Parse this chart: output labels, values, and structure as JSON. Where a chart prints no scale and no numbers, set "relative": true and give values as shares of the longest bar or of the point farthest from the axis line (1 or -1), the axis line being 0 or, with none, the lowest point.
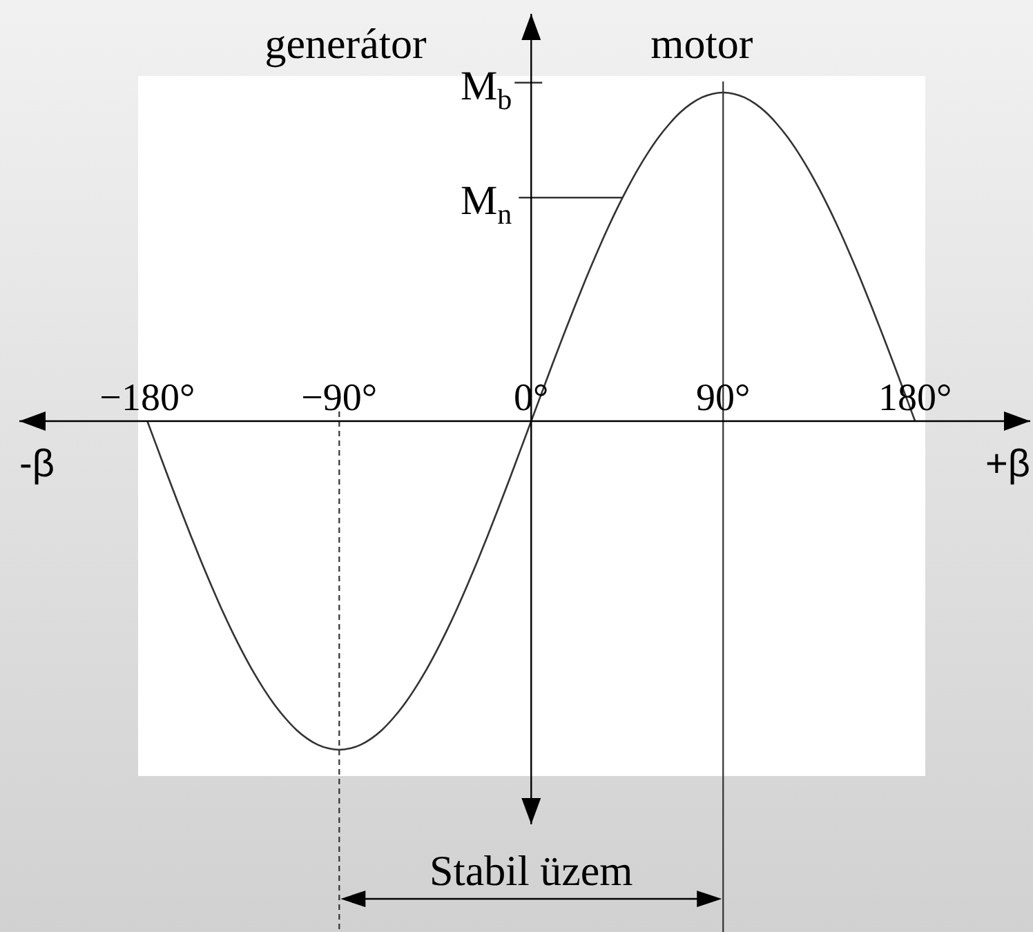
{
  "chart_data": {
    "type": "line",
    "relative": true,
    "xlabel": "+β",
    "annotations": [
      "generátor",
      "motor",
      "-β",
      "Stabil üzem"
    ],
    "xlim": [
      -240,
      234
    ],
    "xticks": [
      {
        "value": -180,
        "label": "−180°"
      },
      {
        "value": -90,
        "label": "−90°"
      },
      {
        "value": 0,
        "label": "0°"
      },
      {
        "value": 90,
        "label": "90°"
      },
      {
        "value": 180,
        "label": "180°"
      }
    ],
    "x": [
      -180,
      -175,
      -170,
      -165,
      -160,
      -155,
      -150,
      -145,
      -140,
      -135,
      -130,
      -125,
      -120,
      -115,
      -110,
      -105,
      -100,
      -95,
      -90,
      -85,
      -80,
      -75,
      -70,
      -65,
      -60,
      -55,
      -50,
      -45,
      -40,
      -35,
      -30,
      -25,
      -20,
      -15,
      -10,
      -5,
      0,
      5,
      10,
      15,
      20,
      25,
      30,
      35,
      40,
      45,
      50,
      55,
      60,
      65,
      70,
      75,
      80,
      85,
      90,
      95,
      100,
      105,
      110,
      115,
      120,
      125,
      130,
      135,
      140,
      145,
      150,
      155,
      160,
      165,
      170,
      175,
      180
    ],
    "series": [
      {
        "color": "#333333",
        "values": [
          0,
          -0.087,
          -0.174,
          -0.259,
          -0.342,
          -0.423,
          -0.5,
          -0.574,
          -0.643,
          -0.707,
          -0.766,
          -0.819,
          -0.866,
          -0.906,
          -0.94,
          -0.966,
          -0.985,
          -0.996,
          -1,
          -0.996,
          -0.985,
          -0.966,
          -0.94,
          -0.906,
          -0.866,
          -0.819,
          -0.766,
          -0.707,
          -0.643,
          -0.574,
          -0.5,
          -0.423,
          -0.342,
          -0.259,
          -0.174,
          -0.087,
          0,
          0.087,
          0.174,
          0.259,
          0.342,
          0.423,
          0.5,
          0.574,
          0.643,
          0.707,
          0.766,
          0.819,
          0.866,
          0.906,
          0.94,
          0.966,
          0.985,
          0.996,
          1,
          0.996,
          0.985,
          0.966,
          0.94,
          0.906,
          0.866,
          0.819,
          0.766,
          0.707,
          0.643,
          0.574,
          0.5,
          0.423,
          0.342,
          0.259,
          0.174,
          0.087,
          0
        ]
      }
    ],
    "ref_lines": [
      {
        "axis": "y",
        "value": 1.03,
        "label": "M$_{b}$"
      },
      {
        "axis": "y",
        "value": 0.68,
        "label": "M$_{n}$"
      },
      {
        "axis": "x",
        "value": 90,
        "line_style": "solid"
      },
      {
        "axis": "x",
        "value": -90,
        "line_style": "dashed"
      }
    ]
  }
}
